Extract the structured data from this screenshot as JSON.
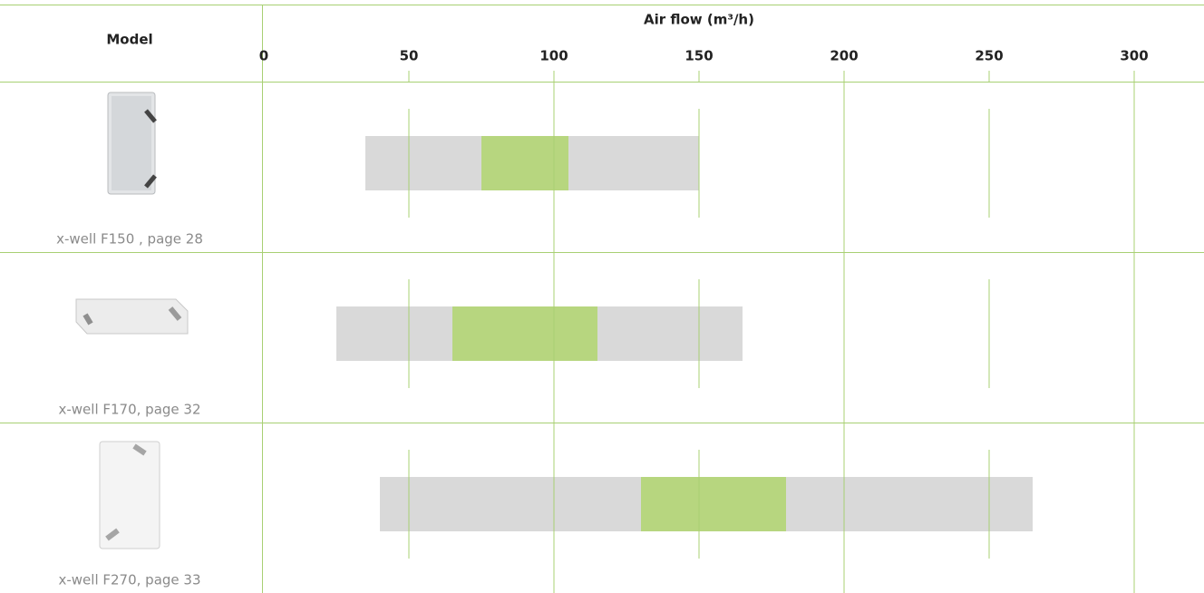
{
  "chart_data": {
    "type": "range-bar",
    "title": "Air flow (m³/h)",
    "category_header": "Model",
    "categories": [
      "x-well F150 , page 28",
      "x-well F170, page 32",
      "x-well F270, page 33"
    ],
    "series": [
      {
        "color": "#d9d9d9",
        "low": [
          35,
          25,
          40
        ],
        "high": [
          150,
          165,
          265
        ]
      },
      {
        "color": "#b7d67f",
        "low": [
          75,
          65,
          130
        ],
        "high": [
          105,
          115,
          180
        ]
      }
    ],
    "xlim": [
      0,
      300
    ],
    "xticks": [
      0,
      50,
      100,
      150,
      200,
      250,
      300
    ],
    "grid": true,
    "grid_color": "#a8d073"
  }
}
